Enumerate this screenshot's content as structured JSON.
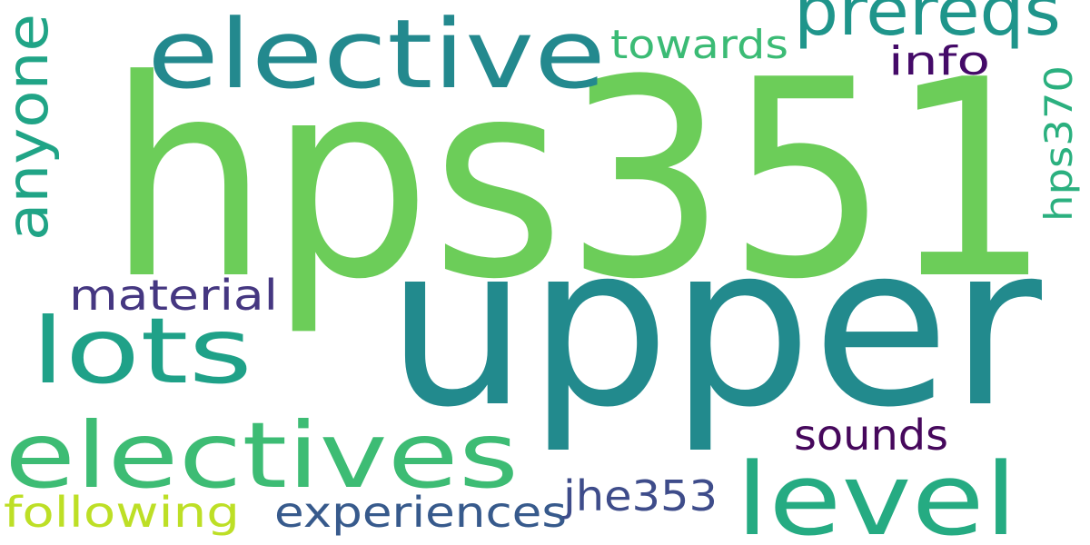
{
  "words": [
    {
      "text": "hps351",
      "color": "#6ccd59"
    },
    {
      "text": "upper",
      "color": "#228a8d"
    },
    {
      "text": "elective",
      "color": "#23898e"
    },
    {
      "text": "prereqs",
      "color": "#1f958b"
    },
    {
      "text": "towards",
      "color": "#3bbb75"
    },
    {
      "text": "info",
      "color": "#440a68"
    },
    {
      "text": "anyone",
      "color": "#20a486"
    },
    {
      "text": "hps370",
      "color": "#2bb07f"
    },
    {
      "text": "lots",
      "color": "#1fa188"
    },
    {
      "text": "material",
      "color": "#453781"
    },
    {
      "text": "electives",
      "color": "#3dbc74"
    },
    {
      "text": "level",
      "color": "#25ab82"
    },
    {
      "text": "sounds",
      "color": "#46085c"
    },
    {
      "text": "following",
      "color": "#bddf26"
    },
    {
      "text": "experiences",
      "color": "#375a8c"
    },
    {
      "text": "jhe353",
      "color": "#3e4c8a"
    }
  ]
}
